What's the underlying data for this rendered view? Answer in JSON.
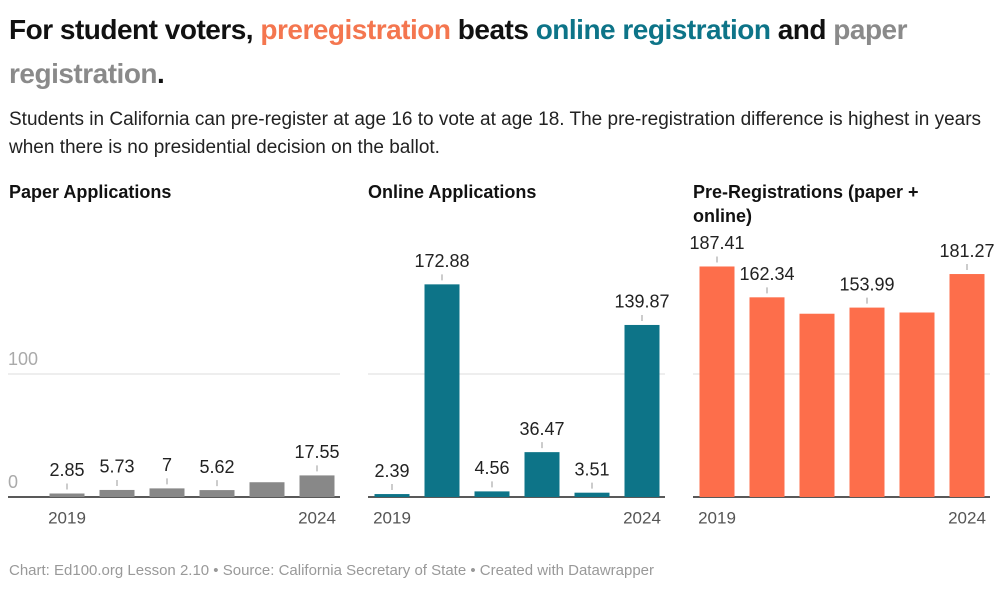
{
  "header": {
    "title_parts": [
      {
        "text": "For student voters, ",
        "color": "#111111"
      },
      {
        "text": "preregistration",
        "color": "#f4764f"
      },
      {
        "text": " beats ",
        "color": "#111111"
      },
      {
        "text": "online registration",
        "color": "#0d7488"
      },
      {
        "text": " and ",
        "color": "#111111"
      },
      {
        "text": "paper registration",
        "color": "#8a8a8a"
      },
      {
        "text": ".",
        "color": "#111111"
      }
    ],
    "subtitle": "Students in California can pre-register at age 16 to vote at age 18. The pre-registration difference is highest in years when there is no presidential decision on the ballot."
  },
  "footer": "Chart: Ed100.org Lesson 2.10 • Source: California Secretary of State • Created with Datawrapper",
  "chart_data": [
    {
      "type": "bar",
      "title": "Paper Applications",
      "categories": [
        "2019",
        null,
        null,
        null,
        null,
        "2024"
      ],
      "values": [
        2.85,
        5.73,
        7,
        5.62,
        12,
        17.55
      ],
      "value_labels": [
        "2.85",
        "5.73",
        "7",
        "5.62",
        null,
        "17.55"
      ],
      "color": "#888888",
      "ylim": [
        0,
        200
      ],
      "yticks": [
        0,
        100
      ],
      "grid": true,
      "ytick_labels": true
    },
    {
      "type": "bar",
      "title": "Online Applications",
      "categories": [
        "2019",
        null,
        null,
        null,
        null,
        "2024"
      ],
      "values": [
        2.39,
        172.88,
        4.56,
        36.47,
        3.51,
        139.87
      ],
      "value_labels": [
        "2.39",
        "172.88",
        "4.56",
        "36.47",
        "3.51",
        "139.87"
      ],
      "color": "#0d7488",
      "ylim": [
        0,
        200
      ],
      "yticks": [
        0,
        100
      ],
      "grid": true,
      "ytick_labels": false
    },
    {
      "type": "bar",
      "title": "Pre-Registrations (paper + online)",
      "categories": [
        "2019",
        null,
        null,
        null,
        null,
        "2024"
      ],
      "values": [
        187.41,
        162.34,
        149,
        153.99,
        150,
        181.27
      ],
      "value_labels": [
        "187.41",
        "162.34",
        null,
        "153.99",
        null,
        "181.27"
      ],
      "color": "#fd6e4b",
      "ylim": [
        0,
        200
      ],
      "yticks": [
        0,
        100
      ],
      "grid": true,
      "ytick_labels": false
    }
  ]
}
